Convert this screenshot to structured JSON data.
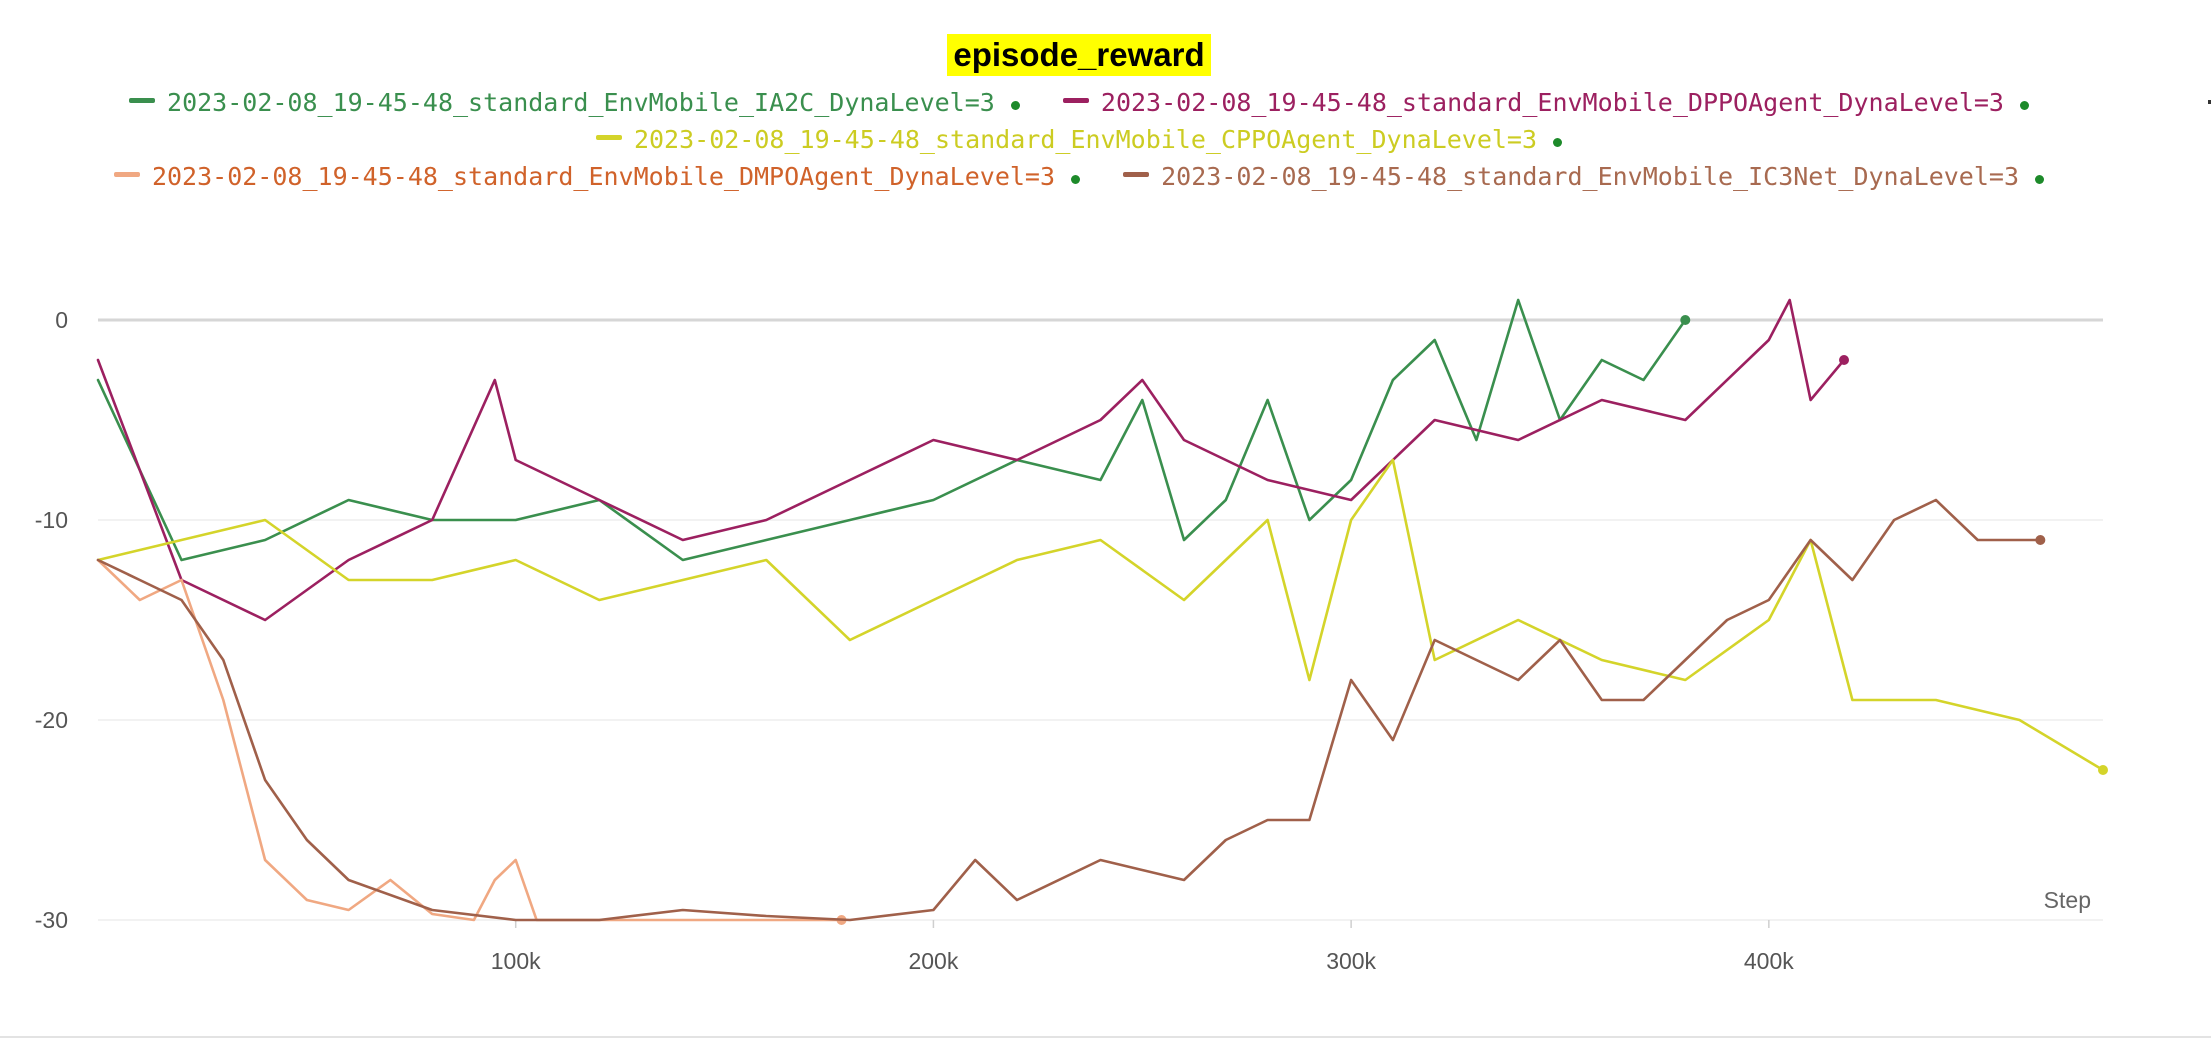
{
  "chart_data": {
    "type": "line",
    "title": "episode_reward",
    "xlabel": "Step",
    "ylabel": "",
    "xlim": [
      0,
      480000
    ],
    "ylim": [
      -30,
      6
    ],
    "x_ticks": [
      {
        "value": 100000,
        "label": "100k"
      },
      {
        "value": 200000,
        "label": "200k"
      },
      {
        "value": 300000,
        "label": "300k"
      },
      {
        "value": 400000,
        "label": "400k"
      }
    ],
    "y_ticks": [
      {
        "value": 0,
        "label": "0"
      },
      {
        "value": -10,
        "label": "-10"
      },
      {
        "value": -20,
        "label": "-20"
      },
      {
        "value": -30,
        "label": "-30"
      }
    ],
    "grid": true,
    "legend_position": "top",
    "series": [
      {
        "name": "2023-02-08_19-45-48_standard_EnvMobile_IA2C_DynaLevel=3",
        "color": "#3a8f4e",
        "legend_text_color": "#3a8f4e",
        "x": [
          0,
          20000,
          40000,
          60000,
          80000,
          100000,
          120000,
          140000,
          160000,
          180000,
          200000,
          220000,
          240000,
          250000,
          260000,
          270000,
          280000,
          290000,
          300000,
          310000,
          320000,
          330000,
          340000,
          350000,
          360000,
          370000,
          380000
        ],
        "y": [
          -3,
          -12,
          -11,
          -9,
          -10,
          -10,
          -9,
          -12,
          -11,
          -10,
          -9,
          -7,
          -8,
          -4,
          -11,
          -9,
          -4,
          -10,
          -8,
          -3,
          -1,
          -6,
          1,
          -5,
          -2,
          -3,
          0
        ]
      },
      {
        "name": "2023-02-08_19-45-48_standard_EnvMobile_DPPOAgent_DynaLevel=3",
        "color": "#9c2060",
        "legend_text_color": "#9c2060",
        "x": [
          0,
          20000,
          40000,
          60000,
          80000,
          95000,
          100000,
          120000,
          140000,
          160000,
          180000,
          200000,
          220000,
          240000,
          250000,
          260000,
          280000,
          300000,
          320000,
          340000,
          360000,
          380000,
          400000,
          405000,
          410000,
          418000
        ],
        "y": [
          -2,
          -13,
          -15,
          -12,
          -10,
          -3,
          -7,
          -9,
          -11,
          -10,
          -8,
          -6,
          -7,
          -5,
          -3,
          -6,
          -8,
          -9,
          -5,
          -6,
          -4,
          -5,
          -1,
          1,
          -4,
          -2
        ]
      },
      {
        "name": "2023-02-08_19-45-48_standard_EnvMobile_CPPOAgent_DynaLevel=3",
        "color": "#d4d42a",
        "legend_text_color": "#cccc22",
        "x": [
          0,
          20000,
          40000,
          60000,
          80000,
          100000,
          120000,
          140000,
          160000,
          180000,
          200000,
          220000,
          240000,
          260000,
          280000,
          290000,
          300000,
          310000,
          320000,
          340000,
          360000,
          380000,
          400000,
          410000,
          420000,
          440000,
          460000,
          480000
        ],
        "y": [
          -12,
          -11,
          -10,
          -13,
          -13,
          -12,
          -14,
          -13,
          -12,
          -16,
          -14,
          -12,
          -11,
          -14,
          -10,
          -18,
          -10,
          -7,
          -17,
          -15,
          -17,
          -18,
          -15,
          -11,
          -19,
          -19,
          -20,
          -22.5
        ]
      },
      {
        "name": "2023-02-08_19-45-48_standard_EnvMobile_DMPOAgent_DynaLevel=3",
        "color": "#f0a882",
        "legend_text_color": "#d0622a",
        "x": [
          0,
          10000,
          20000,
          30000,
          40000,
          50000,
          60000,
          70000,
          80000,
          90000,
          95000,
          100000,
          105000,
          110000,
          120000,
          140000,
          160000,
          178000
        ],
        "y": [
          -12,
          -14,
          -13,
          -19,
          -27,
          -29,
          -29.5,
          -28,
          -29.7,
          -30,
          -28,
          -27,
          -30,
          -30,
          -30,
          -30,
          -30,
          -30
        ]
      },
      {
        "name": "2023-02-08_19-45-48_standard_EnvMobile_IC3Net_DynaLevel=3",
        "color": "#a0604a",
        "legend_text_color": "#a86a50",
        "x": [
          0,
          10000,
          20000,
          30000,
          40000,
          50000,
          60000,
          80000,
          100000,
          120000,
          140000,
          160000,
          180000,
          200000,
          210000,
          220000,
          240000,
          260000,
          270000,
          280000,
          290000,
          300000,
          310000,
          320000,
          330000,
          340000,
          350000,
          360000,
          370000,
          380000,
          390000,
          400000,
          410000,
          420000,
          430000,
          440000,
          450000,
          465000
        ],
        "y": [
          -12,
          -13,
          -14,
          -17,
          -23,
          -26,
          -28,
          -29.5,
          -30,
          -30,
          -29.5,
          -29.8,
          -30,
          -29.5,
          -27,
          -29,
          -27,
          -28,
          -26,
          -25,
          -25,
          -18,
          -21,
          -16,
          -17,
          -18,
          -16,
          -19,
          -19,
          -17,
          -15,
          -14,
          -11,
          -13,
          -10,
          -9,
          -11,
          -11
        ]
      }
    ]
  }
}
